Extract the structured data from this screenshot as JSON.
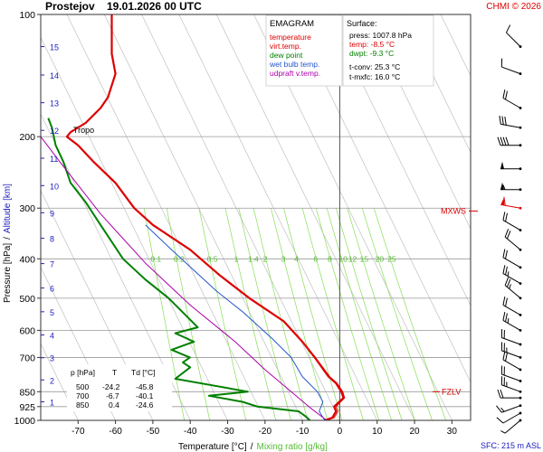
{
  "header": {
    "station": "Prostejov",
    "datetime": "19.01.2026 00 UTC",
    "copyright": "CHMI © 2026"
  },
  "colors": {
    "temperature": "#dd0000",
    "virt_temp": "#dd0000",
    "dew_point": "#008000",
    "wet_bulb": "#2255cc",
    "updraft": "#aa00aa",
    "isotherm": "#c8c8c8",
    "mixing": "#88dd55",
    "altitude": "#2020c0",
    "grid": "#999999"
  },
  "legend": {
    "title": "EMAGRAM",
    "items": [
      {
        "label": "temperature",
        "color": "#dd0000"
      },
      {
        "label": "virt.temp.",
        "color": "#dd0000"
      },
      {
        "label": "dew point",
        "color": "#008000"
      },
      {
        "label": "wet bulb temp.",
        "color": "#2255cc"
      },
      {
        "label": "udpraft v.temp.",
        "color": "#aa00aa"
      }
    ]
  },
  "surface": {
    "title": "Surface:",
    "press": "press: 1007.8 hPa",
    "temp": "temp: -8.5 °C",
    "dwpt": "dwpt: -9.3 °C",
    "tconv": "t-conv: 25.3 °C",
    "tmxfc": "t-mxfc: 16.0 °C"
  },
  "table": {
    "headers": [
      "p [hPa]",
      "T",
      "Td [°C]"
    ],
    "rows": [
      [
        "500",
        "-24.2",
        "-45.8"
      ],
      [
        "700",
        "-6.7",
        "-40.1"
      ],
      [
        "850",
        "0.4",
        "-24.6"
      ]
    ]
  },
  "annotations": {
    "tropo": "Tropo",
    "mxws": "MXWS",
    "fzlv": "FZLV",
    "sfc": "SFC: 215 m ASL"
  },
  "chart_data": {
    "type": "line",
    "title": "Prostejov 19.01.2026 00 UTC",
    "xlabel": "Temperature [°C]",
    "xlabel2": "Mixing ratio [g/kg]",
    "xlabel_sep": "/",
    "ylabel": "Pressure [hPa]",
    "ylabel_sep": "/",
    "ylabel2": "Altitude [km]",
    "xlim": [
      -80,
      35
    ],
    "ylim": [
      1000,
      100
    ],
    "x_ticks": [
      -70,
      -60,
      -50,
      -40,
      -30,
      -20,
      -10,
      0,
      10,
      20,
      30
    ],
    "p_ticks": [
      100,
      200,
      300,
      400,
      500,
      600,
      700,
      850,
      925,
      1000
    ],
    "p_grid": [
      200,
      300,
      400,
      500,
      600,
      700,
      850,
      925,
      1000
    ],
    "altitude_km": [
      {
        "km": 1,
        "p": 900
      },
      {
        "km": 2,
        "p": 795
      },
      {
        "km": 3,
        "p": 701
      },
      {
        "km": 4,
        "p": 616
      },
      {
        "km": 5,
        "p": 540
      },
      {
        "km": 6,
        "p": 472
      },
      {
        "km": 7,
        "p": 411
      },
      {
        "km": 8,
        "p": 356
      },
      {
        "km": 9,
        "p": 308
      },
      {
        "km": 10,
        "p": 264
      },
      {
        "km": 11,
        "p": 226
      },
      {
        "km": 12,
        "p": 193
      },
      {
        "km": 13,
        "p": 165
      },
      {
        "km": 14,
        "p": 141
      },
      {
        "km": 15,
        "p": 120
      }
    ],
    "mixing_ratio_labels": [
      "0.1",
      "0.2",
      "0.5",
      "1",
      "1.4",
      "2",
      "3",
      "4",
      "6",
      "8",
      "10",
      "12",
      "15",
      "20",
      "25"
    ],
    "mixing_ratio_values": [
      0.1,
      0.2,
      0.5,
      1,
      1.4,
      2,
      3,
      4,
      6,
      8,
      10,
      12,
      15,
      20,
      25
    ],
    "mixing_label_p": 400,
    "isotherm_skew_deg_per_decade": 53,
    "series": [
      {
        "name": "temperature",
        "color": "#dd0000",
        "width": 2.2,
        "points": [
          [
            -4,
            1000
          ],
          [
            -2,
            985
          ],
          [
            -1,
            950
          ],
          [
            -1.5,
            925
          ],
          [
            1,
            880
          ],
          [
            0.4,
            850
          ],
          [
            -1,
            810
          ],
          [
            -3,
            780
          ],
          [
            -6.7,
            700
          ],
          [
            -10,
            640
          ],
          [
            -15,
            570
          ],
          [
            -24.2,
            500
          ],
          [
            -32,
            440
          ],
          [
            -40,
            380
          ],
          [
            -50,
            330
          ],
          [
            -55,
            300
          ],
          [
            -60,
            260
          ],
          [
            -66,
            230
          ],
          [
            -70,
            210
          ],
          [
            -73,
            200
          ],
          [
            -72,
            195
          ],
          [
            -68,
            185
          ],
          [
            -64,
            170
          ],
          [
            -62,
            160
          ],
          [
            -60,
            140
          ],
          [
            -61,
            125
          ],
          [
            -61,
            100
          ]
        ]
      },
      {
        "name": "virt.temp.",
        "color": "#dd0000",
        "width": 1.0,
        "points": [
          [
            -3.5,
            1000
          ],
          [
            -1.5,
            985
          ],
          [
            -0.5,
            950
          ],
          [
            -1,
            925
          ],
          [
            1.3,
            880
          ],
          [
            0.8,
            850
          ],
          [
            -0.7,
            810
          ],
          [
            -2.7,
            780
          ],
          [
            -6.5,
            700
          ],
          [
            -9.9,
            640
          ],
          [
            -15,
            570
          ],
          [
            -24.2,
            500
          ],
          [
            -32,
            440
          ],
          [
            -40,
            380
          ],
          [
            -50,
            330
          ],
          [
            -55,
            300
          ],
          [
            -60,
            260
          ],
          [
            -66,
            230
          ],
          [
            -70,
            210
          ],
          [
            -73,
            200
          ]
        ]
      },
      {
        "name": "dew point",
        "color": "#008000",
        "width": 2.0,
        "points": [
          [
            -8,
            1000
          ],
          [
            -9,
            980
          ],
          [
            -11,
            950
          ],
          [
            -22,
            925
          ],
          [
            -26,
            900
          ],
          [
            -35,
            870
          ],
          [
            -24.6,
            850
          ],
          [
            -34,
            820
          ],
          [
            -44,
            790
          ],
          [
            -40,
            740
          ],
          [
            -42,
            720
          ],
          [
            -40.1,
            700
          ],
          [
            -45,
            670
          ],
          [
            -39,
            640
          ],
          [
            -44,
            610
          ],
          [
            -38,
            590
          ],
          [
            -45.8,
            500
          ],
          [
            -52,
            450
          ],
          [
            -58,
            400
          ],
          [
            -64,
            330
          ],
          [
            -68,
            290
          ],
          [
            -72,
            260
          ],
          [
            -74,
            230
          ],
          [
            -76,
            210
          ],
          [
            -77,
            190
          ],
          [
            -78,
            180
          ]
        ]
      },
      {
        "name": "wet bulb temp.",
        "color": "#2255cc",
        "width": 1.0,
        "points": [
          [
            -4,
            1000
          ],
          [
            -5.5,
            950
          ],
          [
            -4.5,
            900
          ],
          [
            -6,
            850
          ],
          [
            -10,
            780
          ],
          [
            -13,
            700
          ],
          [
            -18,
            630
          ],
          [
            -26,
            540
          ],
          [
            -33,
            480
          ],
          [
            -45,
            380
          ],
          [
            -52,
            330
          ]
        ]
      },
      {
        "name": "udpraft v.temp.",
        "color": "#aa00aa",
        "width": 1.0,
        "points": [
          [
            -3.5,
            1000
          ],
          [
            -8,
            930
          ],
          [
            -13,
            850
          ],
          [
            -20,
            750
          ],
          [
            -28,
            640
          ],
          [
            -40,
            520
          ],
          [
            -52,
            410
          ],
          [
            -64,
            310
          ],
          [
            -75,
            230
          ],
          [
            -80,
            200
          ]
        ]
      }
    ],
    "wind_barbs": [
      {
        "p": 120,
        "dir": 315,
        "speed": 10
      },
      {
        "p": 140,
        "dir": 290,
        "speed": 10
      },
      {
        "p": 170,
        "dir": 300,
        "speed": 20
      },
      {
        "p": 190,
        "dir": 280,
        "speed": 30
      },
      {
        "p": 210,
        "dir": 270,
        "speed": 40
      },
      {
        "p": 240,
        "dir": 270,
        "speed": 50
      },
      {
        "p": 270,
        "dir": 270,
        "speed": 55
      },
      {
        "p": 300,
        "dir": 280,
        "speed": 60
      },
      {
        "p": 340,
        "dir": 300,
        "speed": 20
      },
      {
        "p": 380,
        "dir": 310,
        "speed": 20
      },
      {
        "p": 420,
        "dir": 300,
        "speed": 20
      },
      {
        "p": 460,
        "dir": 300,
        "speed": 25
      },
      {
        "p": 500,
        "dir": 310,
        "speed": 25
      },
      {
        "p": 550,
        "dir": 300,
        "speed": 20
      },
      {
        "p": 600,
        "dir": 300,
        "speed": 25
      },
      {
        "p": 650,
        "dir": 290,
        "speed": 20
      },
      {
        "p": 700,
        "dir": 290,
        "speed": 25
      },
      {
        "p": 750,
        "dir": 300,
        "speed": 20
      },
      {
        "p": 800,
        "dir": 290,
        "speed": 20
      },
      {
        "p": 850,
        "dir": 290,
        "speed": 25
      },
      {
        "p": 880,
        "dir": 270,
        "speed": 20
      },
      {
        "p": 920,
        "dir": 250,
        "speed": 15
      },
      {
        "p": 960,
        "dir": 240,
        "speed": 10
      },
      {
        "p": 1000,
        "dir": 230,
        "speed": 5
      }
    ],
    "mxws_p": 305,
    "fzlv_p": 850
  }
}
